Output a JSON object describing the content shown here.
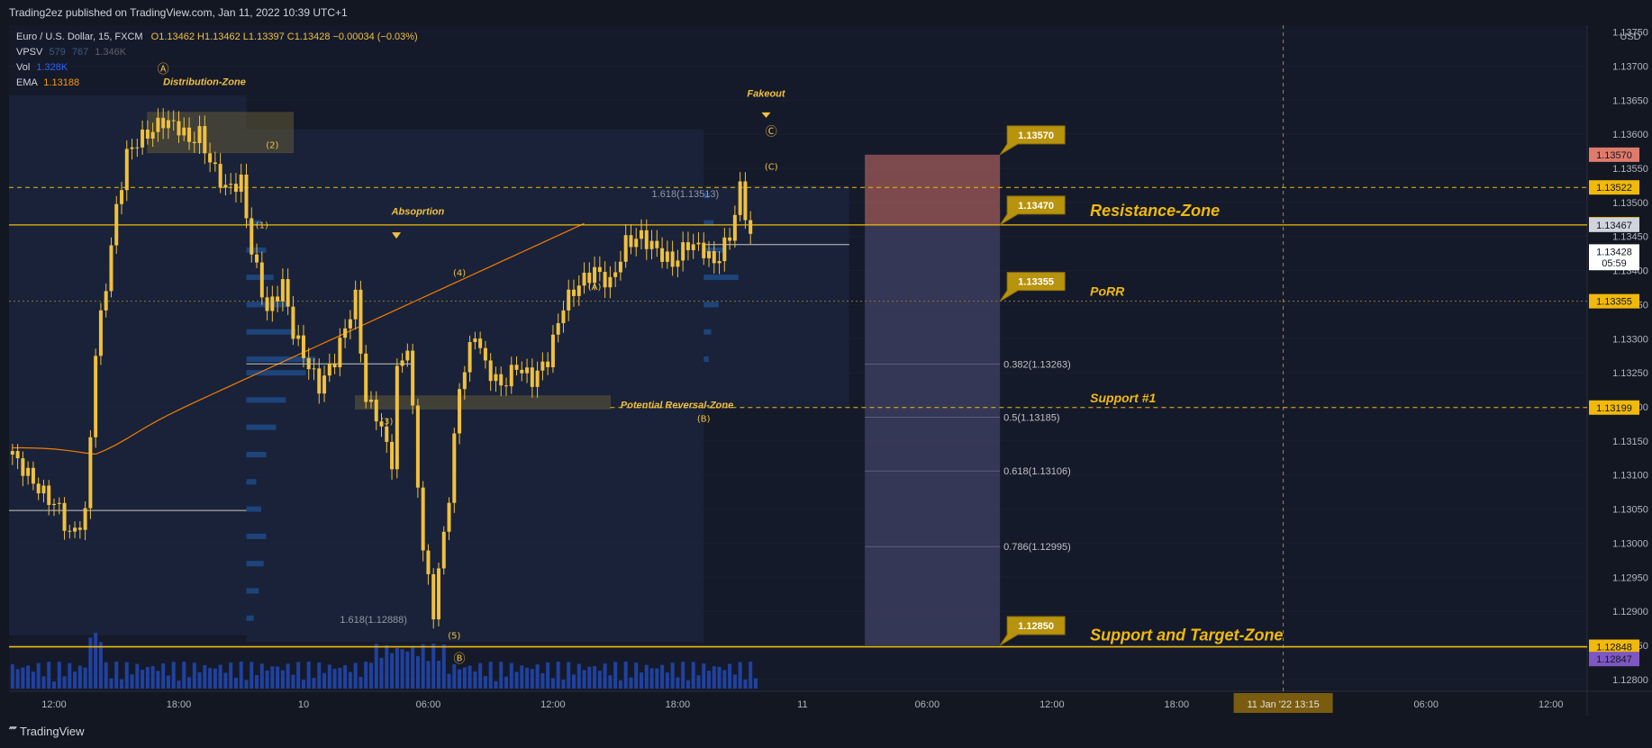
{
  "header": {
    "publisher": "Trading2ez published on TradingView.com, Jan 11, 2022 10:39 UTC+1"
  },
  "legend": {
    "symbol": "Euro / U.S. Dollar, 15, FXCM",
    "ohlc": "O1.13462  H1.13462  L1.13397  C1.13428  −0.00034 (−0.03%)",
    "vpsv_label": "VPSV",
    "vpsv_a": "579",
    "vpsv_b": "767",
    "vpsv_c": "1.346K",
    "vol_label": "Vol",
    "vol_value": "1.328K",
    "ema_label": "EMA",
    "ema_value": "1.13188"
  },
  "footer": {
    "brand": "TradingView"
  },
  "chart_data": {
    "type": "candlestick",
    "currency": "USD",
    "ylim": [
      1.1278,
      1.1376
    ],
    "y_ticks": [
      "1.13750",
      "1.13700",
      "1.13650",
      "1.13600",
      "1.13550",
      "1.13500",
      "1.13450",
      "1.13400",
      "1.13350",
      "1.13300",
      "1.13250",
      "1.13200",
      "1.13150",
      "1.13100",
      "1.13050",
      "1.13000",
      "1.12950",
      "1.12900",
      "1.12850",
      "1.12800"
    ],
    "x_ticks": [
      {
        "t": 0,
        "label": "12:00"
      },
      {
        "t": 24,
        "label": "18:00"
      },
      {
        "t": 48,
        "label": "10"
      },
      {
        "t": 72,
        "label": "06:00"
      },
      {
        "t": 96,
        "label": "12:00"
      },
      {
        "t": 120,
        "label": "18:00"
      },
      {
        "t": 144,
        "label": "11"
      },
      {
        "t": 168,
        "label": "06:00"
      },
      {
        "t": 192,
        "label": "12:00"
      },
      {
        "t": 216,
        "label": "18:00"
      },
      {
        "t": 264,
        "label": "06:00"
      },
      {
        "t": 288,
        "label": "12:00"
      }
    ],
    "x_cursor_label": "11 Jan '22  13:15",
    "price_path": [
      [
        -8,
        1.1313
      ],
      [
        -3,
        1.1308
      ],
      [
        1,
        1.1305
      ],
      [
        3,
        1.1301
      ],
      [
        6,
        1.1304
      ],
      [
        8,
        1.1328
      ],
      [
        10,
        1.1338
      ],
      [
        12,
        1.1349
      ],
      [
        14,
        1.1357
      ],
      [
        16,
        1.1359
      ],
      [
        18,
        1.136
      ],
      [
        21,
        1.1362
      ],
      [
        24,
        1.1361
      ],
      [
        26,
        1.1359
      ],
      [
        28,
        1.136
      ],
      [
        30,
        1.1356
      ],
      [
        33,
        1.1352
      ],
      [
        36,
        1.1353
      ],
      [
        38,
        1.1343
      ],
      [
        41,
        1.1334
      ],
      [
        44,
        1.1338
      ],
      [
        46,
        1.1331
      ],
      [
        49,
        1.1326
      ],
      [
        51,
        1.1323
      ],
      [
        54,
        1.1327
      ],
      [
        58,
        1.1336
      ],
      [
        60,
        1.1321
      ],
      [
        62,
        1.1319
      ],
      [
        65,
        1.1312
      ],
      [
        66,
        1.1325
      ],
      [
        68,
        1.1329
      ],
      [
        71,
        1.1299
      ],
      [
        73,
        1.129
      ],
      [
        76,
        1.1307
      ],
      [
        78,
        1.1323
      ],
      [
        81,
        1.1331
      ],
      [
        83,
        1.1326
      ],
      [
        86,
        1.1323
      ],
      [
        89,
        1.1326
      ],
      [
        92,
        1.1324
      ],
      [
        95,
        1.1327
      ],
      [
        98,
        1.1335
      ],
      [
        101,
        1.1338
      ],
      [
        104,
        1.134
      ],
      [
        107,
        1.1338
      ],
      [
        110,
        1.1344
      ],
      [
        113,
        1.1345
      ],
      [
        116,
        1.1343
      ],
      [
        119,
        1.1341
      ],
      [
        122,
        1.1344
      ],
      [
        125,
        1.1343
      ],
      [
        127,
        1.1341
      ],
      [
        130,
        1.1345
      ],
      [
        132,
        1.1352
      ],
      [
        134,
        1.1345
      ],
      [
        135,
        1.1343
      ]
    ],
    "levels": {
      "resistance_top": 1.13522,
      "resistance_zone": 1.13467,
      "porr": 1.13355,
      "support_1": 1.13199,
      "support_target": 1.12848
    },
    "price_labels": [
      {
        "value": "1.13570",
        "color": "#e07a6a"
      },
      {
        "value": "1.13522",
        "color": "#f0b90b"
      },
      {
        "value": "1.13468",
        "color": "#f0b90b"
      },
      {
        "value": "1.13467",
        "color": "#d1d4dc"
      },
      {
        "value": "1.13428",
        "color": "#ffffff"
      },
      {
        "value": "05:59",
        "color": "#ffffff"
      },
      {
        "value": "1.13355",
        "color": "#f0b90b"
      },
      {
        "value": "1.13199",
        "color": "#f0b90b"
      },
      {
        "value": "1.12848",
        "color": "#f0b90b"
      },
      {
        "value": "1.12847",
        "color": "#7e57c2"
      }
    ],
    "target_callouts": [
      "1.13570",
      "1.13470",
      "1.13355",
      "1.12850"
    ],
    "fib_labels": [
      "1.618(1.13513)",
      "0.382(1.13263)",
      "0.5(1.13185)",
      "0.618(1.13106)",
      "0.786(1.12995)",
      "1.618(1.12888)"
    ],
    "zone_labels": [
      "Resistance-Zone",
      "PoRR",
      "Support #1",
      "Support and Target-Zone"
    ],
    "annotations": [
      "Distribution-Zone",
      "Absoprtion",
      "Potential Reversal-Zone",
      "Fakeout"
    ],
    "wave_labels": [
      "Ⓐ",
      "Ⓑ",
      "Ⓒ",
      "(1)",
      "(2)",
      "(3)",
      "(4)",
      "(5)",
      "(A)",
      "(B)",
      "(C)"
    ],
    "colors": {
      "bg": "#131722",
      "candle": "#f0c040",
      "zone_line": "#f0b90b",
      "volume": "#2962ff",
      "ema": "#f57c00",
      "target_box": "#d2726a",
      "projection_box": "#5c5b8a"
    }
  }
}
